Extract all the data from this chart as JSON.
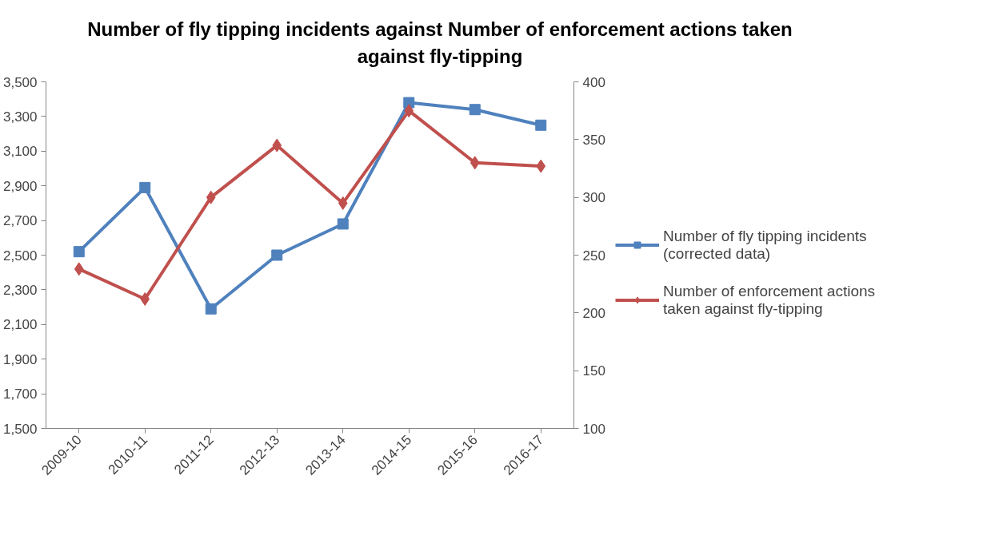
{
  "chart_data": {
    "type": "line",
    "title": "Number of fly tipping incidents against Number of enforcement actions taken against fly-tipping",
    "categories": [
      "2009-10",
      "2010-11",
      "2011-12",
      "2012-13",
      "2013-14",
      "2014-15",
      "2015-16",
      "2016-17"
    ],
    "series": [
      {
        "name": "Number of fly tipping incidents (corrected data)",
        "color": "#4f81bd",
        "marker": "square",
        "values": [
          2520,
          2890,
          2190,
          2500,
          2680,
          3380,
          3340,
          3250
        ]
      },
      {
        "name": "Number of enforcement actions taken against fly-tipping",
        "color": "#c0504d",
        "marker": "diamond",
        "axis": "y2",
        "values": [
          238,
          212,
          300,
          345,
          295,
          375,
          330,
          327
        ]
      }
    ],
    "ylim": [
      1500,
      3500
    ],
    "yticks": [
      {
        "value": 1500,
        "label": "1,500"
      },
      {
        "value": 1700,
        "label": "1,700"
      },
      {
        "value": 1900,
        "label": "1,900"
      },
      {
        "value": 2100,
        "label": "2,100"
      },
      {
        "value": 2300,
        "label": "2,300"
      },
      {
        "value": 2500,
        "label": "2,500"
      },
      {
        "value": 2700,
        "label": "2,700"
      },
      {
        "value": 2900,
        "label": "2,900"
      },
      {
        "value": 3100,
        "label": "3,100"
      },
      {
        "value": 3300,
        "label": "3,300"
      },
      {
        "value": 3500,
        "label": "3,500"
      }
    ],
    "y2lim": [
      100,
      400
    ],
    "y2ticks": [
      100,
      150,
      200,
      250,
      300,
      350,
      400
    ],
    "grid": false,
    "legend": "right",
    "line_style": "solid"
  }
}
